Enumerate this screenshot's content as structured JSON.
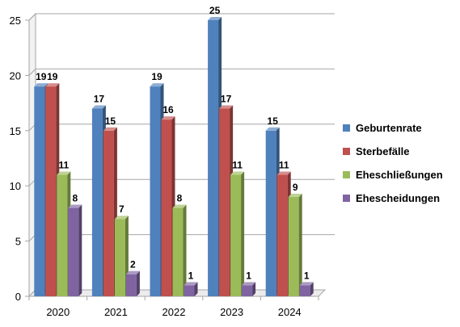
{
  "chart_data": {
    "type": "bar",
    "title": "",
    "xlabel": "",
    "ylabel": "",
    "categories": [
      "2020",
      "2021",
      "2022",
      "2023",
      "2024"
    ],
    "ylim": [
      0,
      25
    ],
    "yticks": [
      0,
      5,
      10,
      15,
      20,
      25
    ],
    "grid": true,
    "legend": "right",
    "series": [
      {
        "name": "Geburtenrate",
        "values": [
          19,
          17,
          19,
          25,
          15
        ],
        "color": "#4F81BD"
      },
      {
        "name": "Sterbefälle",
        "values": [
          19,
          15,
          16,
          17,
          11
        ],
        "color": "#C0504D"
      },
      {
        "name": "Eheschließungen",
        "values": [
          11,
          7,
          8,
          11,
          9
        ],
        "color": "#9BBB59"
      },
      {
        "name": "Ehescheidungen",
        "values": [
          8,
          2,
          1,
          1,
          1
        ],
        "color": "#8064A2"
      }
    ]
  }
}
